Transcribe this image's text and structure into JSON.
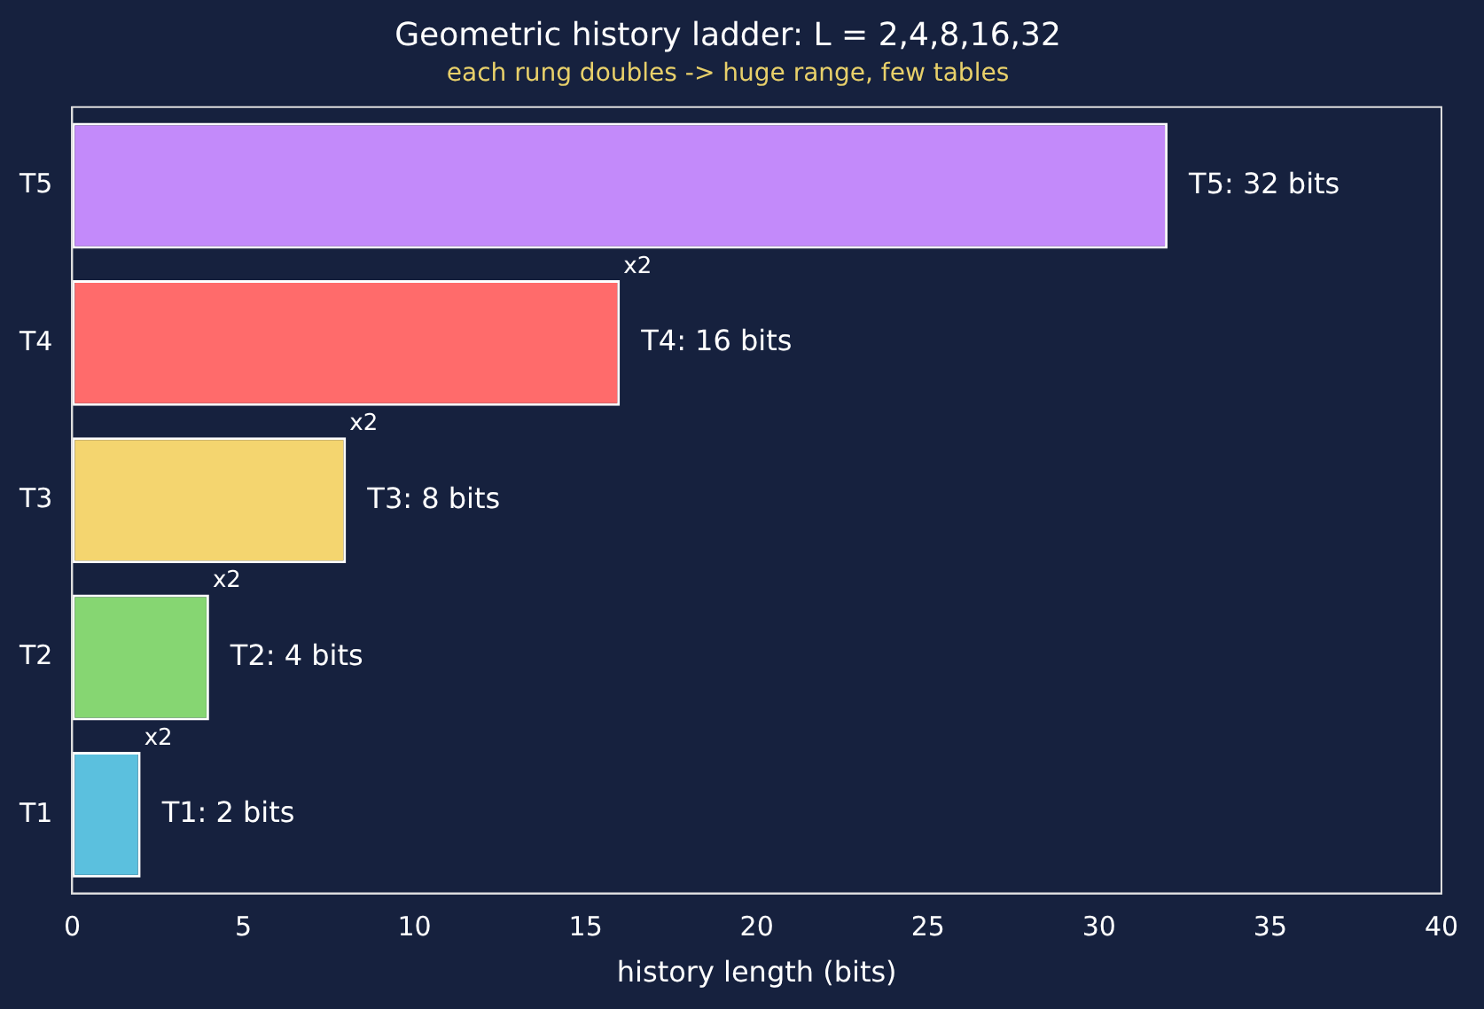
{
  "chart_data": {
    "type": "bar",
    "orientation": "horizontal",
    "title": "Geometric history ladder: L = 2,4,8,16,32",
    "subtitle": "each rung doubles -> huge range, few tables",
    "xlabel": "history length (bits)",
    "categories": [
      "T5",
      "T4",
      "T3",
      "T2",
      "T1"
    ],
    "values": [
      32,
      16,
      8,
      4,
      2
    ],
    "colors": [
      "#c38afa",
      "#ff6b6b",
      "#f4d56f",
      "#86d672",
      "#5bc0de"
    ],
    "value_labels": [
      "T5: 32 bits",
      "T4: 16 bits",
      "T3: 8 bits",
      "T2: 4 bits",
      "T1: 2 bits"
    ],
    "annotations": [
      {
        "text": "x2",
        "x": 16,
        "y": "T4"
      },
      {
        "text": "x2",
        "x": 8,
        "y": "T3"
      },
      {
        "text": "x2",
        "x": 4,
        "y": "T2"
      },
      {
        "text": "x2",
        "x": 2,
        "y": "T1"
      }
    ],
    "xlim": [
      0,
      40
    ],
    "xticks": [
      0,
      5,
      10,
      15,
      20,
      25,
      30,
      35,
      40
    ],
    "grid": false,
    "legend": false
  }
}
